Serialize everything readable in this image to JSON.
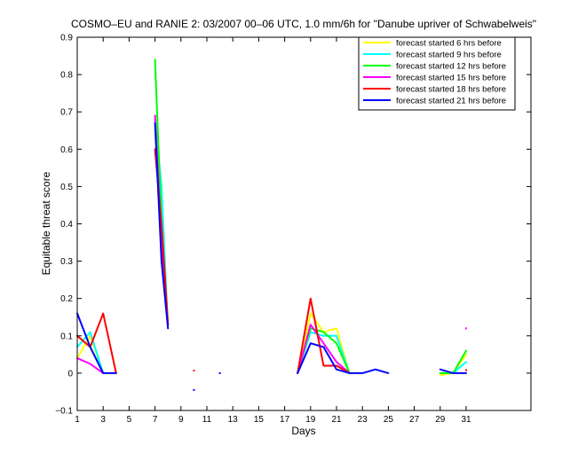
{
  "chart_data": {
    "type": "line",
    "title": "COSMO–EU and RANIE 2: 03/2007 00–06 UTC, 1.0 mm/6h for \"Danube upriver of Schwabelweis\"",
    "xlabel": "Days",
    "ylabel": "Equitable threat score",
    "xlim": [
      1,
      36
    ],
    "ylim": [
      -0.1,
      0.9
    ],
    "xticks": [
      1,
      3,
      5,
      7,
      9,
      11,
      13,
      15,
      17,
      19,
      21,
      23,
      25,
      27,
      29,
      31
    ],
    "yticks": [
      -0.1,
      0,
      0.1,
      0.2,
      0.3,
      0.4,
      0.5,
      0.6,
      0.7,
      0.8,
      0.9
    ],
    "ytick_labels": [
      "−0.1",
      "0",
      "0.1",
      "0.2",
      "0.3",
      "0.4",
      "0.5",
      "0.6",
      "0.7",
      "0.8",
      "0.9"
    ],
    "legend_position": "top-right",
    "series": [
      {
        "name": "forecast started 6 hrs before",
        "color": "#ffff00",
        "segments": [
          [
            [
              1,
              0.04
            ],
            [
              2,
              0.1
            ],
            [
              3,
              0
            ]
          ],
          [
            [
              7,
              0.66
            ],
            [
              7.5,
              0.3
            ],
            [
              8,
              0.13
            ]
          ],
          [
            [
              18,
              0
            ],
            [
              19,
              0.16
            ],
            [
              20,
              0.11
            ],
            [
              21,
              0.12
            ],
            [
              22,
              0
            ]
          ],
          [
            [
              29,
              -0.005
            ],
            [
              30,
              0
            ],
            [
              31,
              0.05
            ]
          ]
        ]
      },
      {
        "name": "forecast started 9 hrs before",
        "color": "#00ffff",
        "segments": [
          [
            [
              1,
              0.07
            ],
            [
              2,
              0.11
            ],
            [
              3,
              0
            ]
          ],
          [
            [
              7,
              0.68
            ],
            [
              7.5,
              0.5
            ],
            [
              8,
              0.12
            ]
          ],
          [
            [
              18,
              0
            ],
            [
              19,
              0.11
            ],
            [
              20,
              0.1
            ],
            [
              21,
              0.1
            ],
            [
              22,
              0
            ]
          ],
          [
            [
              29,
              0
            ],
            [
              30,
              0
            ],
            [
              31,
              0.03
            ]
          ]
        ]
      },
      {
        "name": "forecast started 12 hrs before",
        "color": "#00ff00",
        "segments": [
          [
            [
              1,
              0.1
            ],
            [
              2,
              0.07
            ],
            [
              3,
              0
            ]
          ],
          [
            [
              7,
              0.84
            ],
            [
              7.5,
              0.4
            ],
            [
              8,
              0.13
            ]
          ],
          [
            [
              18,
              0
            ],
            [
              19,
              0.12
            ],
            [
              20,
              0.11
            ],
            [
              21,
              0.08
            ],
            [
              22,
              0
            ]
          ],
          [
            [
              29,
              0
            ],
            [
              30,
              0
            ],
            [
              31,
              0.06
            ]
          ]
        ]
      },
      {
        "name": "forecast started 15 hrs before",
        "color": "#ff00ff",
        "segments": [
          [
            [
              1,
              0.04
            ],
            [
              2,
              0.025
            ],
            [
              3,
              0
            ]
          ],
          [
            [
              7,
              0.69
            ],
            [
              7.5,
              0.35
            ],
            [
              8,
              0.13
            ]
          ],
          [
            [
              18,
              0
            ],
            [
              19,
              0.13
            ],
            [
              20,
              0.08
            ],
            [
              21,
              0.03
            ],
            [
              22,
              0
            ]
          ]
        ],
        "dots": [
          [
            31,
            0.12
          ]
        ]
      },
      {
        "name": "forecast started 18 hrs before",
        "color": "#ff0000",
        "segments": [
          [
            [
              1,
              0.1
            ],
            [
              2,
              0.07
            ],
            [
              3,
              0.16
            ],
            [
              4,
              0
            ]
          ],
          [
            [
              7,
              0.6
            ],
            [
              7.5,
              0.4
            ],
            [
              8,
              0.13
            ]
          ],
          [
            [
              18,
              0
            ],
            [
              19,
              0.2
            ],
            [
              20,
              0.02
            ],
            [
              21,
              0.02
            ],
            [
              22,
              0
            ]
          ]
        ],
        "dots": [
          [
            10,
            0.007
          ],
          [
            31,
            0.008
          ]
        ]
      },
      {
        "name": "forecast started 21 hrs before",
        "color": "#0000ff",
        "segments": [
          [
            [
              1,
              0.16
            ],
            [
              2,
              0.07
            ],
            [
              3,
              0
            ],
            [
              4,
              0
            ]
          ],
          [
            [
              7,
              0.67
            ],
            [
              7.5,
              0.3
            ],
            [
              8,
              0.12
            ]
          ],
          [
            [
              18,
              0
            ],
            [
              19,
              0.08
            ],
            [
              20,
              0.07
            ],
            [
              21,
              0.01
            ],
            [
              22,
              0
            ],
            [
              23,
              0
            ],
            [
              24,
              0.01
            ],
            [
              25,
              0
            ]
          ],
          [
            [
              29,
              0.01
            ],
            [
              30,
              0
            ],
            [
              31,
              0
            ]
          ]
        ],
        "dots": [
          [
            10,
            -0.045
          ],
          [
            12,
            0
          ]
        ]
      }
    ]
  }
}
